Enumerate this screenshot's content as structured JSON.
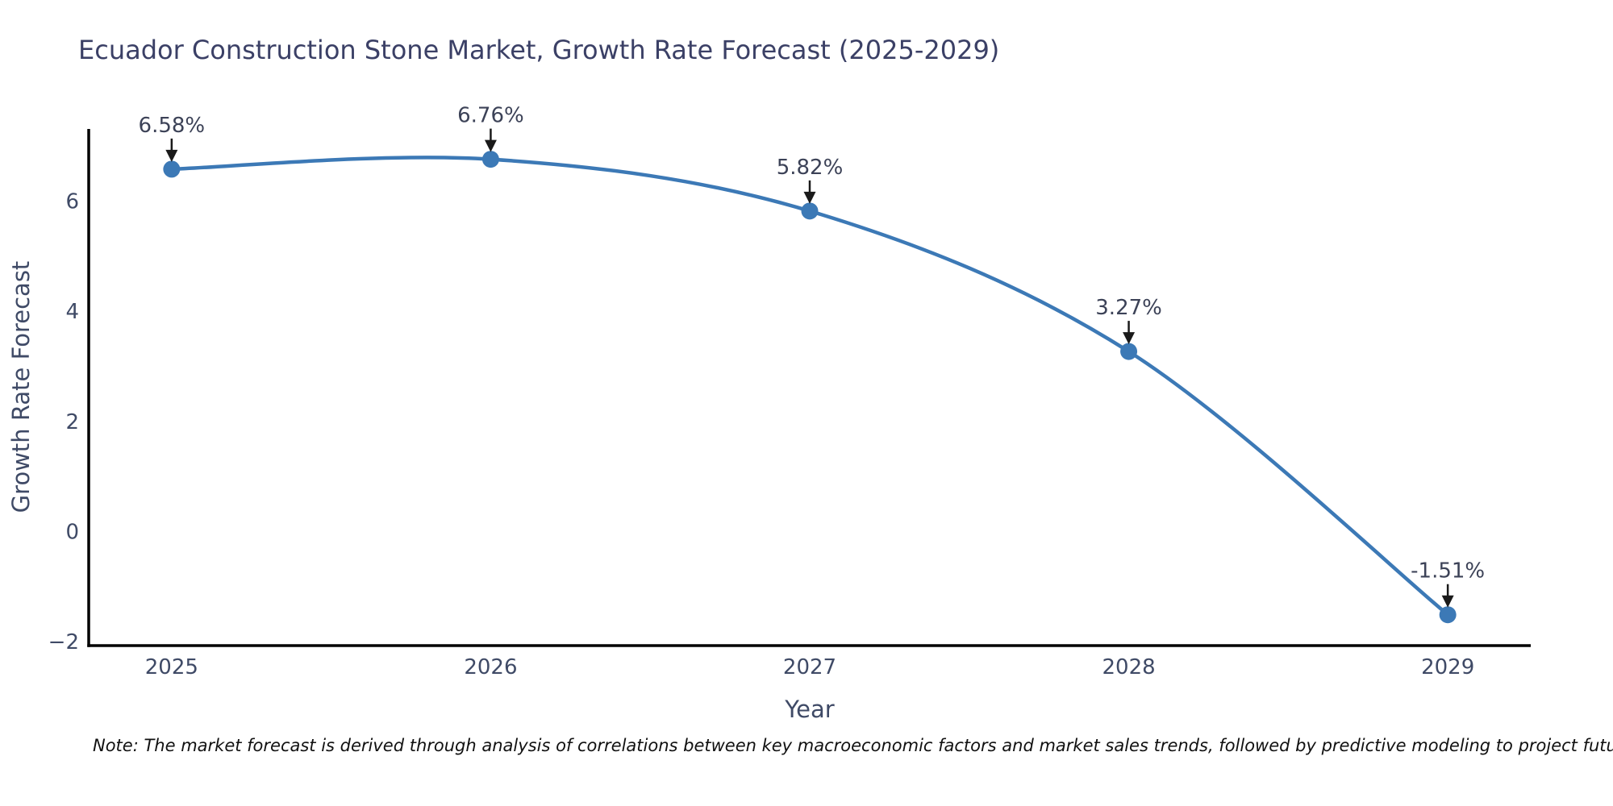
{
  "title": "Ecuador Construction Stone Market, Growth Rate Forecast (2025-2029)",
  "note": "Note: The market forecast is derived through analysis of correlations between key macroeconomic factors and market sales trends, followed by predictive modeling to project future sales",
  "chart_data": {
    "type": "line",
    "title": "Ecuador Construction Stone Market, Growth Rate Forecast (2025-2029)",
    "xlabel": "Year",
    "ylabel": "Growth Rate Forecast",
    "x": [
      2025,
      2026,
      2027,
      2028,
      2029
    ],
    "values": [
      6.58,
      6.76,
      5.82,
      3.27,
      -1.51
    ],
    "point_labels": [
      "6.58%",
      "6.76%",
      "5.82%",
      "3.27%",
      "-1.51%"
    ],
    "xticks": [
      2025,
      2026,
      2027,
      2028,
      2029
    ],
    "yticks": [
      -2,
      0,
      2,
      4,
      6
    ],
    "xlim": [
      2024.74,
      2029.26
    ],
    "ylim": [
      -2.07,
      7.31
    ],
    "line_shape": "spline",
    "grid": false,
    "legend": false,
    "markers": true,
    "colors": {
      "line": "#3c79b6",
      "marker": "#3c79b6",
      "axis": "#000000",
      "tick_text": "#3f4a66",
      "title_text": "#3b4066",
      "annotation_text": "#3c4257",
      "arrow": "#1a1a1a",
      "note_text": "#111111",
      "background": "#ffffff"
    }
  }
}
